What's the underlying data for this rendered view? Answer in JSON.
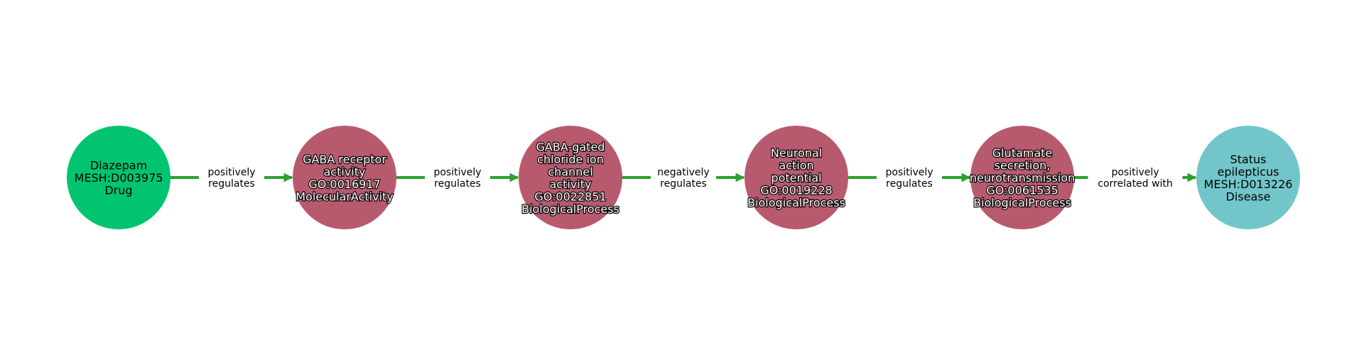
{
  "colors": {
    "edge": "#2ca02c",
    "drug": "#00c470",
    "process": "#b85a6e",
    "disease": "#72c6ca",
    "background": "#ffffff"
  },
  "nodes": [
    {
      "id": "diazepam",
      "kind": "drug",
      "halo": false,
      "lines": [
        "Diazepam",
        "MESH:D003975",
        "Drug"
      ]
    },
    {
      "id": "gaba-receptor-activity",
      "kind": "process",
      "halo": true,
      "lines": [
        "GABA receptor",
        "activity",
        "GO:0016917",
        "MolecularActivity"
      ]
    },
    {
      "id": "gaba-gated-chloride-channel",
      "kind": "process",
      "halo": true,
      "lines": [
        "GABA-gated",
        "chloride ion",
        "channel",
        "activity",
        "GO:0022851",
        "BiologicalProcess"
      ]
    },
    {
      "id": "neuronal-action-potential",
      "kind": "process",
      "halo": true,
      "lines": [
        "Neuronal",
        "action",
        "potential",
        "GO:0019228",
        "BiologicalProcess"
      ]
    },
    {
      "id": "glutamate-secretion",
      "kind": "process",
      "halo": true,
      "lines": [
        "Glutamate",
        "secretion,",
        "neurotransmission",
        "GO:0061535",
        "BiologicalProcess"
      ]
    },
    {
      "id": "status-epilepticus",
      "kind": "disease",
      "halo": false,
      "lines": [
        "Status",
        "epilepticus",
        "MESH:D013226",
        "Disease"
      ]
    }
  ],
  "edges": [
    {
      "from": 0,
      "to": 1,
      "lines": [
        "positively",
        "regulates"
      ]
    },
    {
      "from": 1,
      "to": 2,
      "lines": [
        "positively",
        "regulates"
      ]
    },
    {
      "from": 2,
      "to": 3,
      "lines": [
        "negatively",
        "regulates"
      ]
    },
    {
      "from": 3,
      "to": 4,
      "lines": [
        "positively",
        "regulates"
      ]
    },
    {
      "from": 4,
      "to": 5,
      "lines": [
        "positively",
        "correlated with"
      ]
    }
  ]
}
